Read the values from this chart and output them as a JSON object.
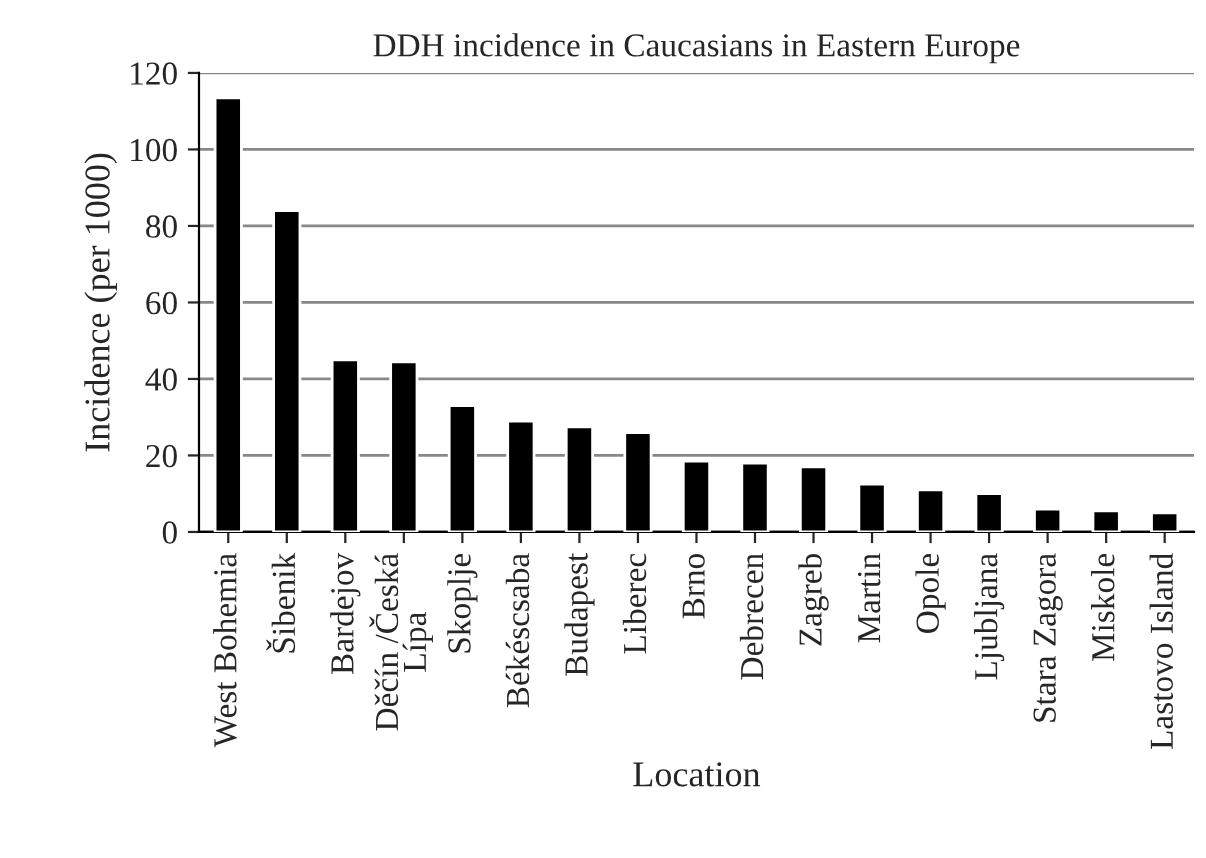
{
  "chart_data": {
    "type": "bar",
    "title": "DDH incidence in Caucasians in Eastern Europe",
    "xlabel": "Location",
    "ylabel": "Incidence (per 1000)",
    "categories": [
      "West Bohemia",
      "Šibenik",
      "Bardejov",
      "Děčín /Česká\nLípa",
      "Skoplje",
      "Békéscsaba",
      "Budapest",
      "Liberec",
      "Brno",
      "Debrecen",
      "Zagreb",
      "Martin",
      "Opole",
      "Ljubljana",
      "Stara Zagora",
      "Miskole",
      "Lastovo Island"
    ],
    "values": [
      113.5,
      84,
      45,
      44.5,
      33,
      29,
      27.5,
      26,
      18.5,
      18,
      17,
      12.5,
      11,
      10,
      6,
      5.5,
      5
    ],
    "color": "#000000",
    "ylim": [
      0,
      120
    ],
    "yticks": [
      0,
      20,
      40,
      60,
      80,
      100,
      120
    ],
    "grid": "y"
  }
}
